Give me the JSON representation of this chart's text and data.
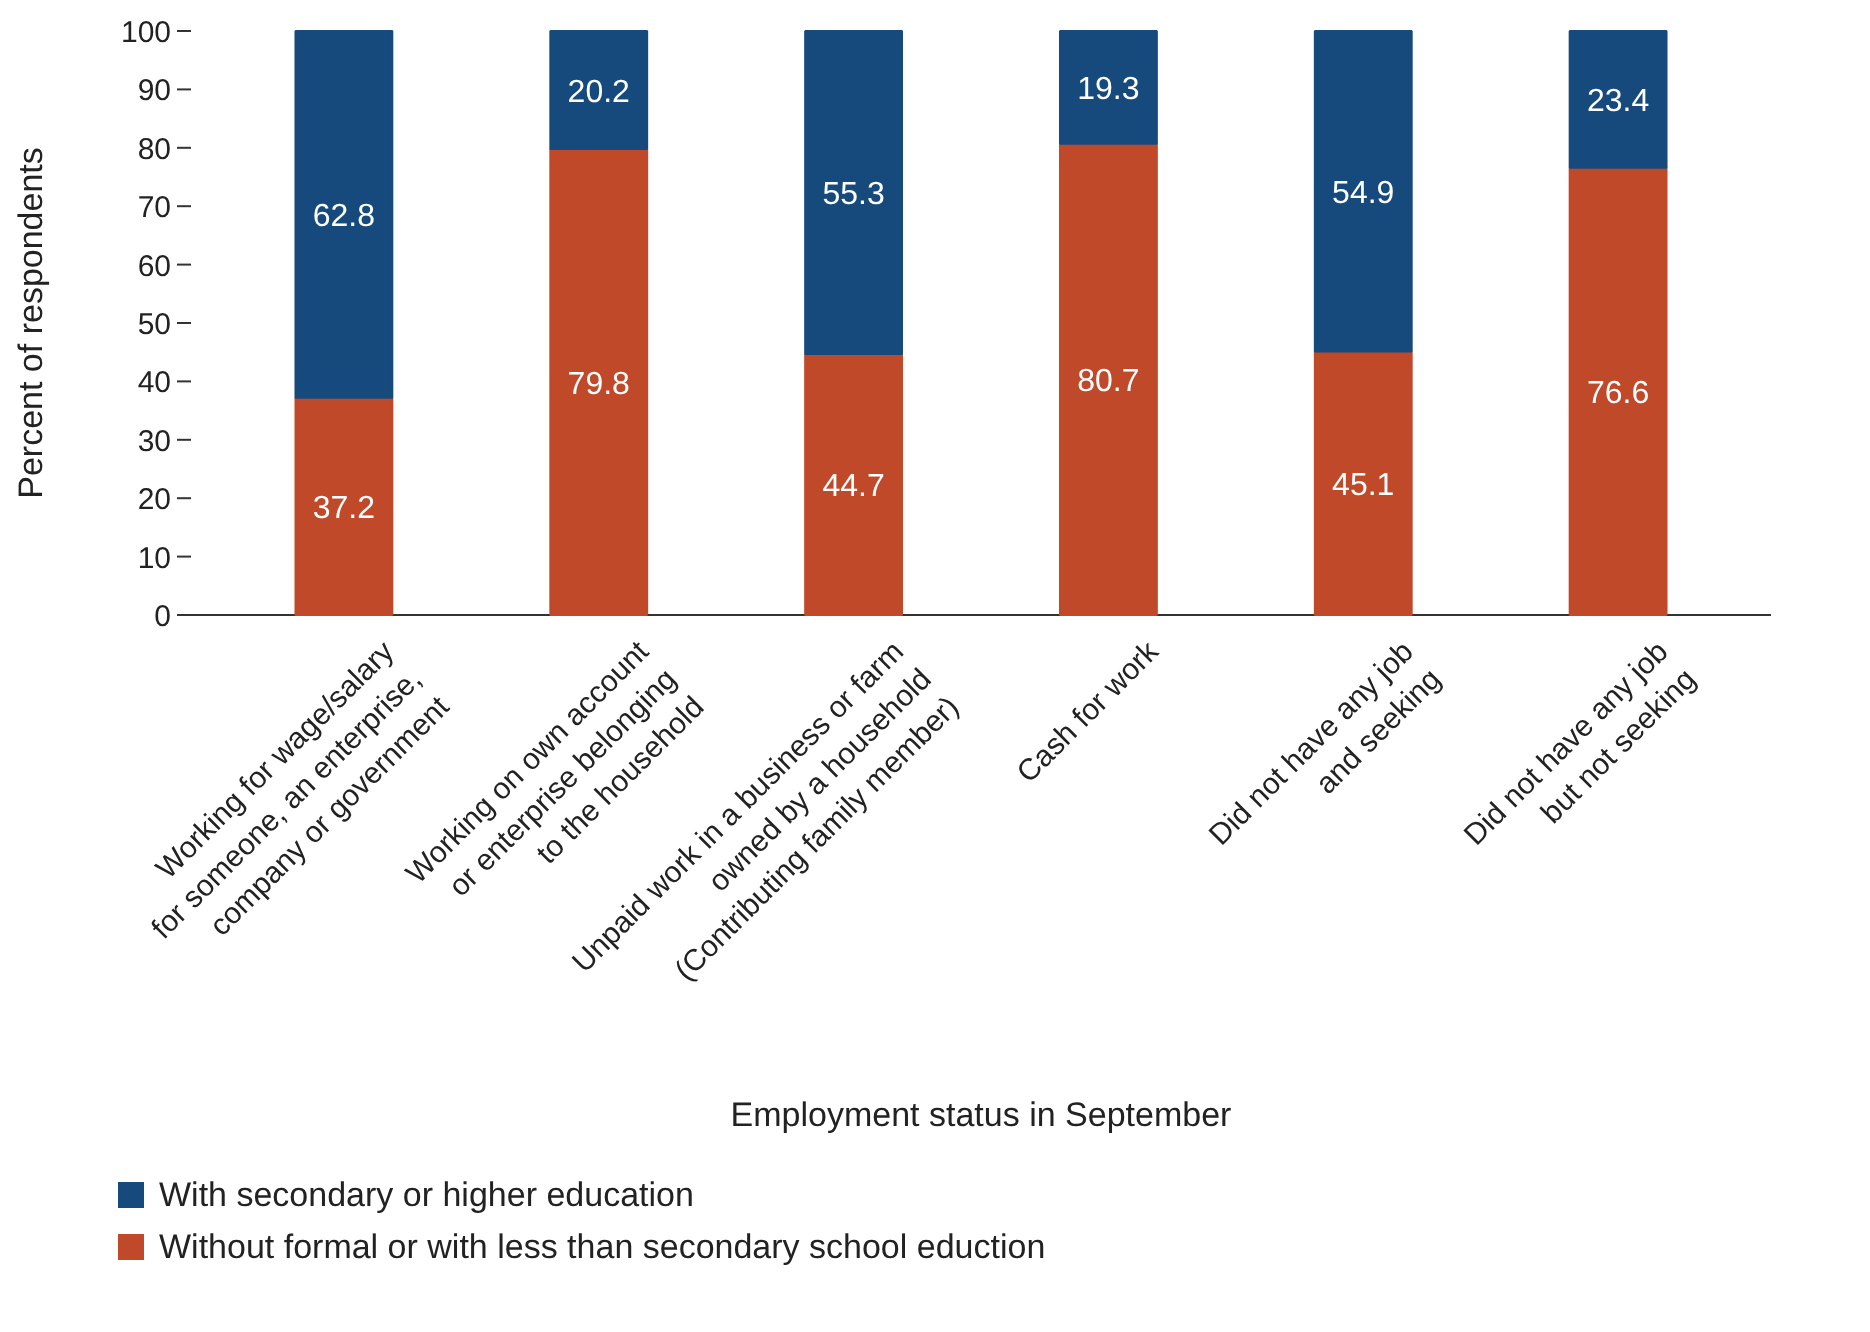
{
  "chart_data": {
    "type": "bar",
    "stacked": true,
    "xlabel": "Employment status in September",
    "ylabel": "Percent of respondents",
    "categories": [
      "Working for wage/salary\nfor someone, an enterprise,\ncompany or government",
      "Working on own account\nor enterprise belonging\nto the household",
      "Unpaid work in a business or farm\nowned by a household\n(Contributing family member)",
      "Cash for work",
      "Did not have any job\nand seeking",
      "Did not have any job\nbut not seeking"
    ],
    "series": [
      {
        "name": "Without formal or with less than secondary school eduction",
        "color": "#c0492a",
        "values": [
          37.2,
          79.8,
          44.7,
          80.7,
          45.1,
          76.6
        ]
      },
      {
        "name": "With secondary or higher education",
        "color": "#174a7c",
        "values": [
          62.8,
          20.2,
          55.3,
          19.3,
          54.9,
          23.4
        ]
      }
    ],
    "ylim": [
      0,
      100
    ],
    "yticks": [
      0,
      10,
      20,
      30,
      40,
      50,
      60,
      70,
      80,
      90,
      100
    ],
    "grid": false,
    "legend": "bottom",
    "data_labels": true
  }
}
